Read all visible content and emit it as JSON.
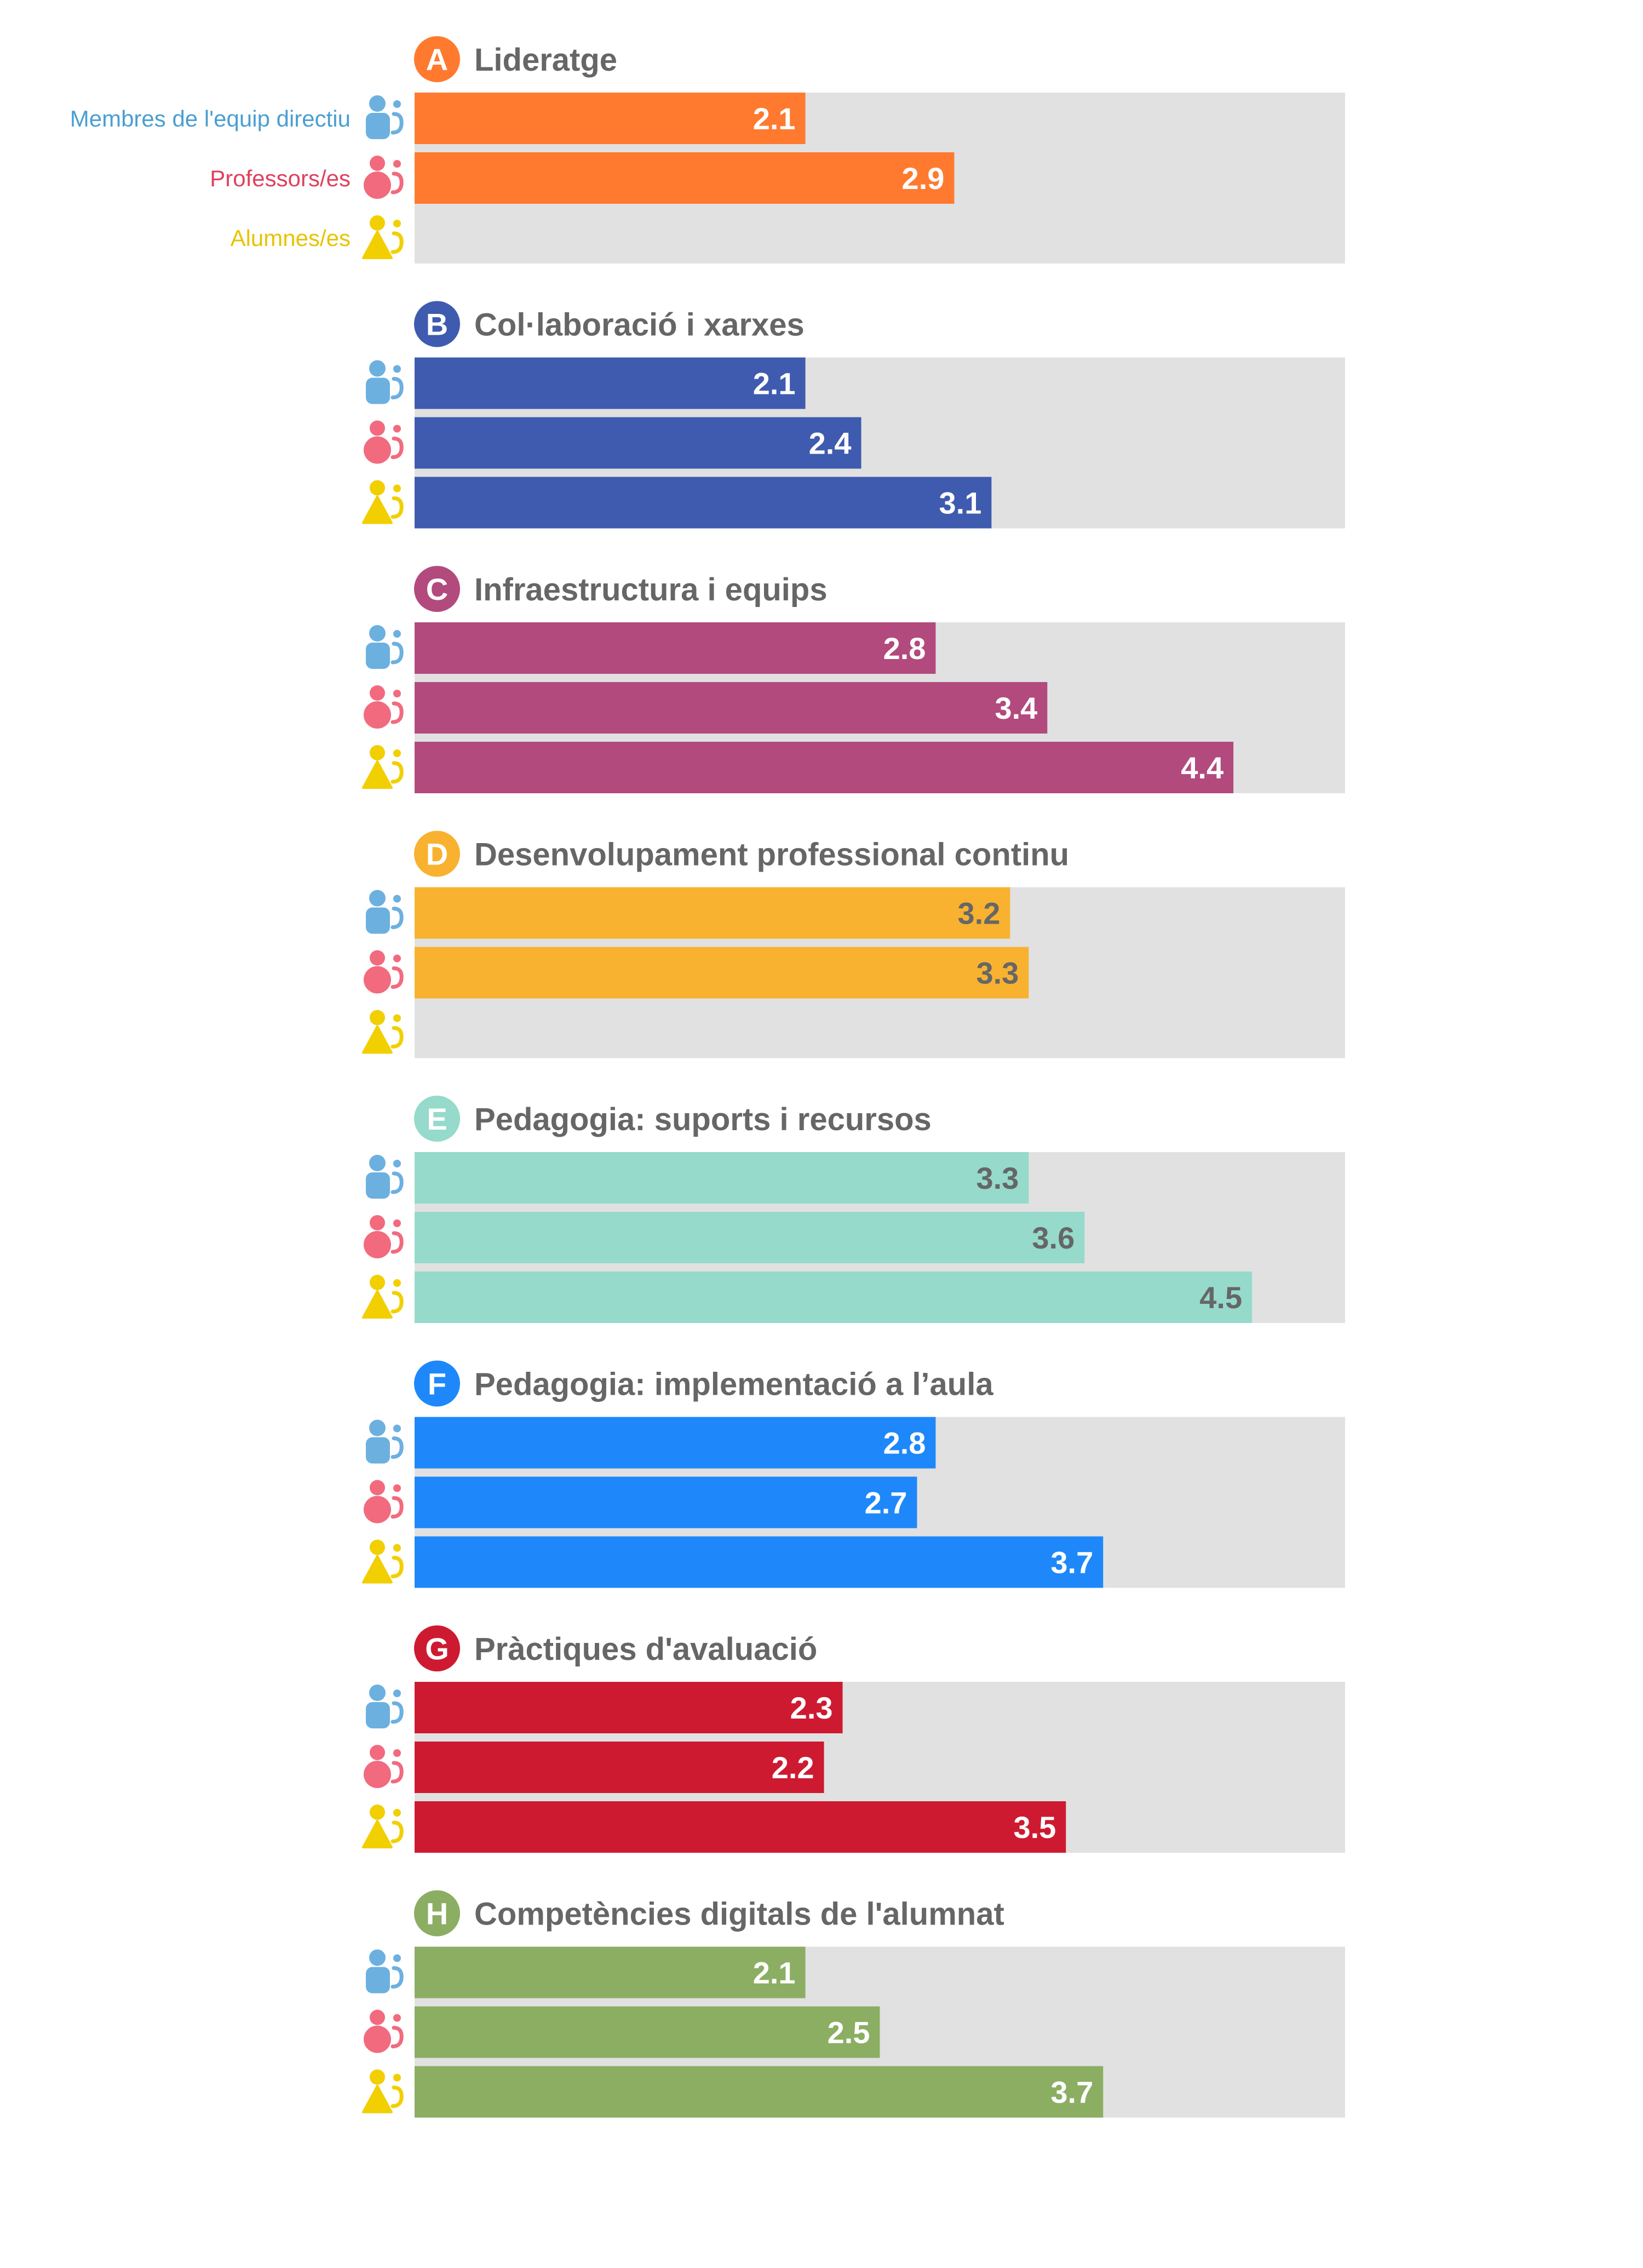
{
  "chart_data": {
    "type": "bar",
    "orientation": "horizontal",
    "xlim": [
      0,
      5
    ],
    "grid": false,
    "legend": "left",
    "groups": [
      {
        "name": "Membres de l'equip directiu",
        "icon": "manager-person-icon",
        "color": "#4A9FD1",
        "icon_color": "#6CB0E0"
      },
      {
        "name": "Professors/es",
        "icon": "teacher-person-icon",
        "color": "#E0405E",
        "icon_color": "#F26A7E"
      },
      {
        "name": "Alumnes/es",
        "icon": "student-person-icon",
        "color": "#E8C300",
        "icon_color": "#F2CF00"
      }
    ],
    "categories": [
      {
        "letter": "A",
        "title": "Lideratge",
        "color": "#FF7A2F",
        "value_color": "#ffffff",
        "values": [
          2.1,
          2.9,
          null
        ]
      },
      {
        "letter": "B",
        "title": "Col·laboració i xarxes",
        "color": "#3F5BAF",
        "value_color": "#ffffff",
        "values": [
          2.1,
          2.4,
          3.1
        ]
      },
      {
        "letter": "C",
        "title": "Infraestructura i equips",
        "color": "#B24A7E",
        "value_color": "#ffffff",
        "values": [
          2.8,
          3.4,
          4.4
        ]
      },
      {
        "letter": "D",
        "title": "Desenvolupament professional continu",
        "color": "#F8B230",
        "value_color": "#666666",
        "values": [
          3.2,
          3.3,
          null
        ]
      },
      {
        "letter": "E",
        "title": "Pedagogia: suports i recursos",
        "color": "#95DACB",
        "value_color": "#666666",
        "values": [
          3.3,
          3.6,
          4.5
        ]
      },
      {
        "letter": "F",
        "title": "Pedagogia: implementació a l’aula",
        "color": "#1E88FA",
        "value_color": "#ffffff",
        "values": [
          2.8,
          2.7,
          3.7
        ]
      },
      {
        "letter": "G",
        "title": "Pràctiques d'avaluació",
        "color": "#CE1A31",
        "value_color": "#ffffff",
        "values": [
          2.3,
          2.2,
          3.5
        ]
      },
      {
        "letter": "H",
        "title": "Competències digitals de l'alumnat",
        "color": "#8BAE63",
        "value_color": "#ffffff",
        "values": [
          2.1,
          2.5,
          3.7
        ]
      }
    ]
  }
}
